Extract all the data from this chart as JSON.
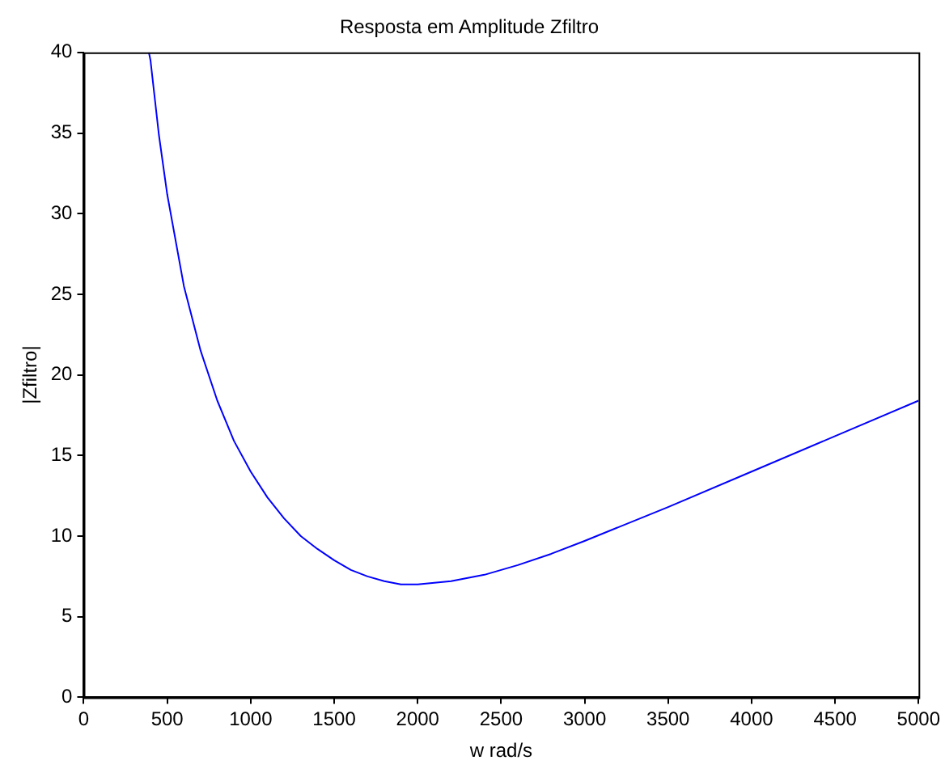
{
  "chart_data": {
    "type": "line",
    "title": "Resposta em Amplitude Zfiltro",
    "xlabel": "w rad/s",
    "ylabel": "|Zfiltro|",
    "x": [
      390,
      400,
      450,
      500,
      600,
      700,
      800,
      900,
      1000,
      1100,
      1200,
      1300,
      1400,
      1500,
      1600,
      1700,
      1800,
      1900,
      2000,
      2200,
      2400,
      2600,
      2800,
      3000,
      3500,
      4000,
      4500,
      5000
    ],
    "series": [
      {
        "color": "#0000ff",
        "values": [
          40,
          39.5,
          34.9,
          31.2,
          25.5,
          21.5,
          18.4,
          15.9,
          14.0,
          12.4,
          11.1,
          10.0,
          9.2,
          8.5,
          7.9,
          7.5,
          7.2,
          7.0,
          7.0,
          7.2,
          7.6,
          8.2,
          8.9,
          9.7,
          11.8,
          14.0,
          16.2,
          18.4
        ]
      }
    ],
    "xlim": [
      0,
      5000
    ],
    "xticks": [
      0,
      500,
      1000,
      1500,
      2000,
      2500,
      3000,
      3500,
      4000,
      4500,
      5000
    ],
    "ylim": [
      0,
      40
    ],
    "yticks": [
      0,
      5,
      10,
      15,
      20,
      25,
      30,
      35,
      40
    ],
    "grid": false,
    "legend": false,
    "marker": "none",
    "line_style": "solid"
  }
}
